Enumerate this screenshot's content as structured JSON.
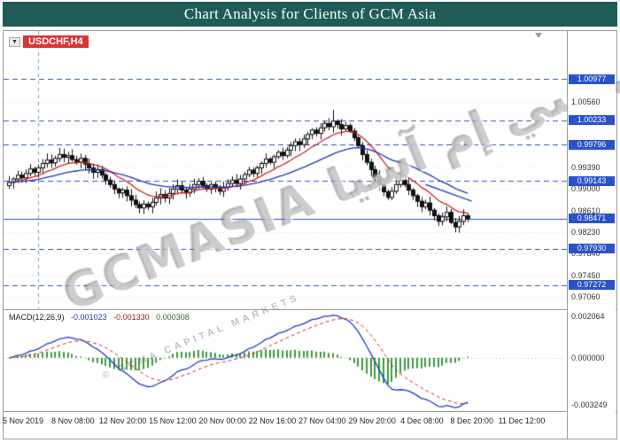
{
  "header": {
    "title": "Chart Analysis for Clients of GCM Asia"
  },
  "toolbar": {
    "symbol_badge": "USDCHF,H4",
    "collapse_icon": "▼"
  },
  "watermark": {
    "main": "GCMASIA جي سي إم آسيا",
    "sub": "© GCMA CAPITAL MARKETS"
  },
  "price_axis": {
    "gridline_labels": [
      "1.00560",
      "0.99390",
      "0.99000",
      "0.98610",
      "0.98230",
      "0.97840",
      "0.97450",
      "0.97060"
    ],
    "level_tags": [
      "1.00977",
      "1.00233",
      "0.99796",
      "0.99143",
      "0.98471",
      "0.97930",
      "0.97272"
    ]
  },
  "macd_panel": {
    "label": "MACD(12,26,9)",
    "values": [
      "-0.001023",
      "-0.001330",
      "0.000308"
    ],
    "axis_labels": [
      "0.002064",
      "0.000000",
      "-0.003249"
    ]
  },
  "time_axis": {
    "labels": [
      "5 Nov 2019",
      "8 Nov 08:00",
      "12 Nov 20:00",
      "15 Nov 12:00",
      "20 Nov 00:00",
      "22 Nov 16:00",
      "27 Nov 04:00",
      "29 Nov 20:00",
      "4 Dec 08:00",
      "8 Dec 20:00",
      "11 Dec 12:00"
    ]
  },
  "chart_data": {
    "type": "candlestick",
    "symbol": "USDCHF",
    "timeframe": "H4",
    "title": "Chart Analysis for Clients of GCM Asia",
    "price_axis_range": {
      "top": 1.0184,
      "bottom": 0.9684
    },
    "gridline_values": [
      1.0056,
      1.0017,
      0.9978,
      0.9939,
      0.99,
      0.9861,
      0.9823,
      0.9784,
      0.9745,
      0.9706
    ],
    "levels": [
      1.00977,
      1.00233,
      0.99796,
      0.99143,
      0.98471,
      0.9793,
      0.97272
    ],
    "solid_level": 0.98471,
    "level_color": "#2a52c8",
    "closes": [
      0.9912,
      0.9918,
      0.9925,
      0.992,
      0.9928,
      0.9936,
      0.993,
      0.9938,
      0.9946,
      0.9952,
      0.9947,
      0.9955,
      0.9962,
      0.9957,
      0.996,
      0.9953,
      0.9948,
      0.9955,
      0.9945,
      0.9938,
      0.993,
      0.9935,
      0.9925,
      0.9916,
      0.9908,
      0.99,
      0.9893,
      0.9898,
      0.9888,
      0.988,
      0.9872,
      0.9866,
      0.9873,
      0.9868,
      0.9876,
      0.9884,
      0.989,
      0.9884,
      0.9892,
      0.99,
      0.9906,
      0.9898,
      0.9893,
      0.99,
      0.9908,
      0.9914,
      0.9906,
      0.99,
      0.9908,
      0.9903,
      0.9896,
      0.9903,
      0.991,
      0.9916,
      0.991,
      0.9918,
      0.9926,
      0.9934,
      0.9928,
      0.9938,
      0.9946,
      0.9954,
      0.9948,
      0.9958,
      0.9966,
      0.996,
      0.997,
      0.9978,
      0.9985,
      0.998,
      0.999,
      0.9998,
      1.0006,
      1.0,
      1.001,
      1.0018,
      1.0012,
      1.0022,
      1.0016,
      1.0008,
      1.0014,
      1.0004,
      0.9992,
      0.9978,
      0.9962,
      0.9948,
      0.9935,
      0.9922,
      0.9908,
      0.9895,
      0.9885,
      0.9896,
      0.9908,
      0.9916,
      0.9908,
      0.9898,
      0.9888,
      0.9878,
      0.9868,
      0.9875,
      0.9862,
      0.9852,
      0.9842,
      0.985,
      0.9858,
      0.984,
      0.9832,
      0.9842,
      0.9852,
      0.9847
    ],
    "peak_wick": {
      "index": 77,
      "high": 1.0042
    },
    "vline_index": 7,
    "trendline": {
      "i1": 99,
      "p1": 0.9908,
      "i2": 110,
      "p2": 0.9878
    },
    "moving_averages": [
      {
        "period": 12,
        "color": "#cc2222"
      },
      {
        "period": 34,
        "color": "#2233bb"
      }
    ],
    "candle_up_fill": "#ffffff",
    "candle_down_fill": "#111111",
    "candle_stroke": "#111111",
    "macd": {
      "fast": 12,
      "slow": 26,
      "signal_period": 9,
      "axis_max_label": 0.002064,
      "axis_min_label": -0.003249,
      "line_color": "#2038c8",
      "signal_color": "#cc2a2a",
      "hist_color": "#3e9b3e"
    }
  }
}
